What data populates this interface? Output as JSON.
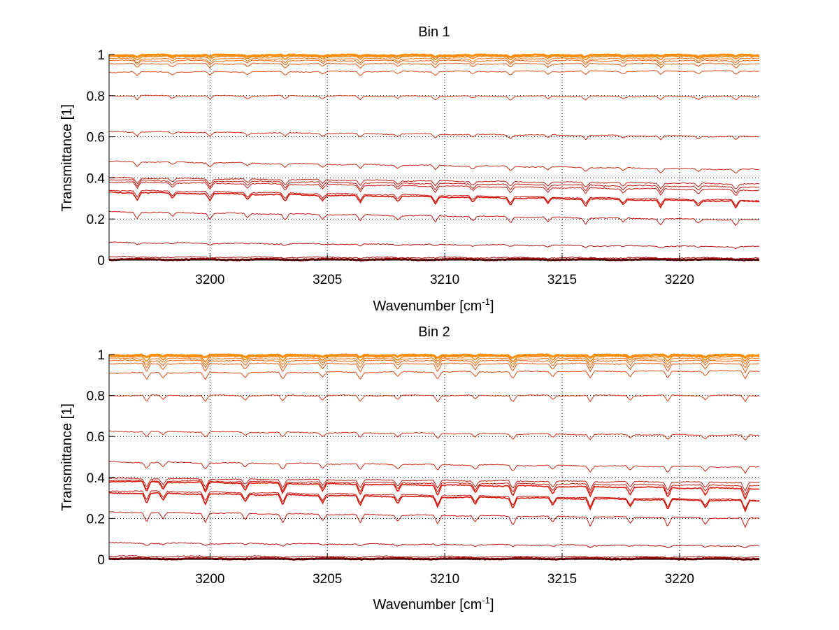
{
  "chart_data": [
    {
      "type": "line",
      "title": "Bin 1",
      "xlabel": "Wavenumber [cm",
      "xlabel_sup": "-1",
      "xlabel_end": "]",
      "ylabel": "Transmittance [1]",
      "xlim": [
        3195.7,
        3223.4
      ],
      "ylim": [
        0,
        1
      ],
      "xticks": [
        3200,
        3205,
        3210,
        3215,
        3220
      ],
      "xtick_labels": [
        "3200",
        "3205",
        "3210",
        "3215",
        "3220"
      ],
      "yticks": [
        0,
        0.2,
        0.4,
        0.6,
        0.8,
        1
      ],
      "ytick_labels": [
        "0",
        "0.2",
        "0.4",
        "0.6",
        "0.8",
        "1"
      ],
      "grid": "dotted",
      "dip_positions": [
        3196.9,
        3198.4,
        3200.0,
        3201.6,
        3203.2,
        3204.8,
        3206.4,
        3208.0,
        3209.6,
        3211.2,
        3212.8,
        3214.4,
        3216.0,
        3217.6,
        3219.2,
        3220.8,
        3222.4
      ],
      "series": [
        {
          "name": "s1",
          "start": 0.003,
          "end": 0.003,
          "dip": 0.0,
          "color": "#8b0000",
          "width": 3
        },
        {
          "name": "s2",
          "start": 0.015,
          "end": 0.01,
          "dip": 0.004,
          "color": "#a30d0d",
          "width": 1
        },
        {
          "name": "s3",
          "start": 0.085,
          "end": 0.065,
          "dip": 0.008,
          "color": "#b31212",
          "width": 1
        },
        {
          "name": "s4",
          "start": 0.235,
          "end": 0.195,
          "dip": 0.03,
          "color": "#c41a10",
          "width": 1
        },
        {
          "name": "s5",
          "start": 0.33,
          "end": 0.285,
          "dip": 0.035,
          "color": "#d41a0f",
          "width": 1.6
        },
        {
          "name": "s6",
          "start": 0.34,
          "end": 0.29,
          "dip": 0.03,
          "color": "#c81810",
          "width": 1
        },
        {
          "name": "s7",
          "start": 0.38,
          "end": 0.34,
          "dip": 0.03,
          "color": "#c41a12",
          "width": 1
        },
        {
          "name": "s8",
          "start": 0.39,
          "end": 0.355,
          "dip": 0.03,
          "color": "#c01c12",
          "width": 1
        },
        {
          "name": "s9",
          "start": 0.4,
          "end": 0.37,
          "dip": 0.025,
          "color": "#bf2014",
          "width": 1
        },
        {
          "name": "s10",
          "start": 0.48,
          "end": 0.44,
          "dip": 0.02,
          "color": "#c72a14",
          "width": 1
        },
        {
          "name": "s11",
          "start": 0.625,
          "end": 0.6,
          "dip": 0.018,
          "color": "#cc3316",
          "width": 1
        },
        {
          "name": "s12",
          "start": 0.8,
          "end": 0.795,
          "dip": 0.018,
          "color": "#d33c16",
          "width": 1
        },
        {
          "name": "s13",
          "start": 0.915,
          "end": 0.92,
          "dip": 0.018,
          "color": "#de4a14",
          "width": 1
        },
        {
          "name": "s14",
          "start": 0.955,
          "end": 0.955,
          "dip": 0.02,
          "color": "#e45812",
          "width": 1
        },
        {
          "name": "s15",
          "start": 0.97,
          "end": 0.97,
          "dip": 0.02,
          "color": "#ea6410",
          "width": 1
        },
        {
          "name": "s16",
          "start": 0.98,
          "end": 0.98,
          "dip": 0.02,
          "color": "#ef720e",
          "width": 1
        },
        {
          "name": "s17",
          "start": 0.99,
          "end": 0.99,
          "dip": 0.015,
          "color": "#f5820c",
          "width": 1.5
        },
        {
          "name": "s18",
          "start": 0.997,
          "end": 0.997,
          "dip": 0.008,
          "color": "#fa8e0a",
          "width": 3
        }
      ]
    },
    {
      "type": "line",
      "title": "Bin 2",
      "xlabel": "Wavenumber [cm",
      "xlabel_sup": "-1",
      "xlabel_end": "]",
      "ylabel": "Transmittance [1]",
      "xlim": [
        3195.7,
        3223.4
      ],
      "ylim": [
        0,
        1
      ],
      "xticks": [
        3200,
        3205,
        3210,
        3215,
        3220
      ],
      "xtick_labels": [
        "3200",
        "3205",
        "3210",
        "3215",
        "3220"
      ],
      "yticks": [
        0,
        0.2,
        0.4,
        0.6,
        0.8,
        1
      ],
      "ytick_labels": [
        "0",
        "0.2",
        "0.4",
        "0.6",
        "0.8",
        "1"
      ],
      "grid": "dotted",
      "dip_positions": [
        3197.3,
        3198.0,
        3199.8,
        3201.5,
        3203.1,
        3204.8,
        3206.4,
        3208.0,
        3209.7,
        3211.3,
        3212.9,
        3214.6,
        3216.2,
        3217.9,
        3219.5,
        3221.1,
        3222.8
      ],
      "series": [
        {
          "name": "s1",
          "start": 0.003,
          "end": 0.003,
          "dip": 0.0,
          "color": "#8b0000",
          "width": 3
        },
        {
          "name": "s2",
          "start": 0.015,
          "end": 0.012,
          "dip": 0.004,
          "color": "#a30d0d",
          "width": 1
        },
        {
          "name": "s3",
          "start": 0.08,
          "end": 0.065,
          "dip": 0.01,
          "color": "#b31212",
          "width": 1
        },
        {
          "name": "s4",
          "start": 0.23,
          "end": 0.2,
          "dip": 0.045,
          "color": "#c41a10",
          "width": 1
        },
        {
          "name": "s5",
          "start": 0.325,
          "end": 0.285,
          "dip": 0.05,
          "color": "#d41a0f",
          "width": 1.6
        },
        {
          "name": "s6",
          "start": 0.335,
          "end": 0.29,
          "dip": 0.045,
          "color": "#c81810",
          "width": 1
        },
        {
          "name": "s7",
          "start": 0.38,
          "end": 0.345,
          "dip": 0.05,
          "color": "#e01e10",
          "width": 1.6
        },
        {
          "name": "s8",
          "start": 0.385,
          "end": 0.36,
          "dip": 0.045,
          "color": "#c01c12",
          "width": 1
        },
        {
          "name": "s9",
          "start": 0.395,
          "end": 0.375,
          "dip": 0.04,
          "color": "#bf2014",
          "width": 1
        },
        {
          "name": "s10",
          "start": 0.475,
          "end": 0.45,
          "dip": 0.03,
          "color": "#c72a14",
          "width": 1
        },
        {
          "name": "s11",
          "start": 0.625,
          "end": 0.605,
          "dip": 0.025,
          "color": "#cc3316",
          "width": 1
        },
        {
          "name": "s12",
          "start": 0.8,
          "end": 0.8,
          "dip": 0.03,
          "color": "#d33c16",
          "width": 1
        },
        {
          "name": "s13",
          "start": 0.91,
          "end": 0.92,
          "dip": 0.035,
          "color": "#de4a14",
          "width": 1
        },
        {
          "name": "s14",
          "start": 0.955,
          "end": 0.955,
          "dip": 0.04,
          "color": "#e45812",
          "width": 1
        },
        {
          "name": "s15",
          "start": 0.97,
          "end": 0.97,
          "dip": 0.035,
          "color": "#ea6410",
          "width": 1
        },
        {
          "name": "s16",
          "start": 0.98,
          "end": 0.98,
          "dip": 0.03,
          "color": "#ef720e",
          "width": 1
        },
        {
          "name": "s17",
          "start": 0.99,
          "end": 0.99,
          "dip": 0.025,
          "color": "#f5820c",
          "width": 1.5
        },
        {
          "name": "s18",
          "start": 0.997,
          "end": 0.997,
          "dip": 0.012,
          "color": "#fa8e0a",
          "width": 3
        }
      ]
    }
  ]
}
